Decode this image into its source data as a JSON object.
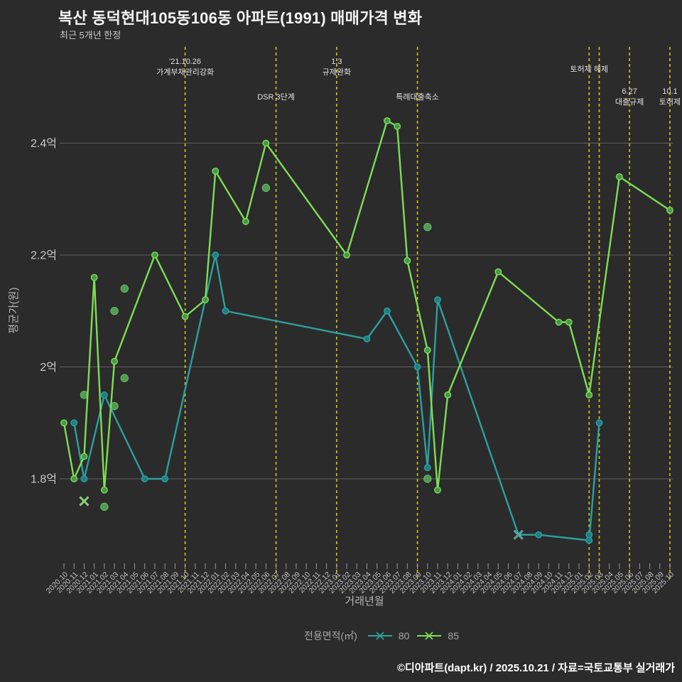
{
  "page": {
    "title": "복산 동덕현대105동106동 아파트(1991) 매매가격 변화",
    "subtitle": "최근 5개년 한정"
  },
  "legend": {
    "label": "전용면적(㎡)",
    "items": [
      {
        "name": "80",
        "color": "#2d9f9f"
      },
      {
        "name": "85",
        "color": "#7edd55"
      }
    ]
  },
  "footer": {
    "credit": "©디아파트(dapt.kr) / 2025.10.21 / 자료=국토교통부 실거래가"
  },
  "chart_data": {
    "type": "line",
    "title": "복산 동덕현대105동106동 아파트(1991) 매매가격 변화",
    "xlabel": "거래년월",
    "ylabel": "평균가(원)",
    "value_unit": "억",
    "ylim": [
      1.62,
      2.55
    ],
    "grid": true,
    "x_categories": [
      "2020.10",
      "2020.11",
      "2020.12",
      "2021.01",
      "2021.02",
      "2021.03",
      "2021.04",
      "2021.05",
      "2021.06",
      "2021.07",
      "2021.08",
      "2021.09",
      "2021.10",
      "2021.11",
      "2021.12",
      "2022.01",
      "2022.02",
      "2022.03",
      "2022.04",
      "2022.05",
      "2022.06",
      "2022.07",
      "2022.08",
      "2022.09",
      "2022.10",
      "2022.11",
      "2022.12",
      "2023.01",
      "2023.02",
      "2023.03",
      "2023.04",
      "2023.05",
      "2023.06",
      "2023.07",
      "2023.08",
      "2023.09",
      "2023.10",
      "2023.11",
      "2023.12",
      "2024.01",
      "2024.02",
      "2024.03",
      "2024.04",
      "2024.05",
      "2024.06",
      "2024.07",
      "2024.08",
      "2024.09",
      "2024.10",
      "2024.11",
      "2024.12",
      "2025.01",
      "2025.02",
      "2025.03",
      "2025.04",
      "2025.05",
      "2025.06",
      "2025.07",
      "2025.08",
      "2025.09",
      "2025.10"
    ],
    "y_ticks": [
      {
        "value": 1.8,
        "label": "1.8억"
      },
      {
        "value": 2.0,
        "label": "2억"
      },
      {
        "value": 2.2,
        "label": "2.2억"
      },
      {
        "value": 2.4,
        "label": "2.4억"
      }
    ],
    "series": [
      {
        "name": "80",
        "color": "#2d9f9f",
        "marker_fill": "#1d7f86",
        "points": [
          [
            1,
            1.9
          ],
          [
            2,
            1.8
          ],
          [
            4,
            1.95
          ],
          [
            8,
            1.8
          ],
          [
            10,
            1.8
          ],
          [
            14,
            2.12
          ],
          [
            15,
            2.2
          ],
          [
            16,
            2.1
          ],
          [
            30,
            2.05
          ],
          [
            32,
            2.1
          ],
          [
            35,
            2.0
          ],
          [
            36,
            1.82
          ],
          [
            37,
            2.12
          ],
          [
            45,
            1.7
          ],
          [
            47,
            1.7
          ],
          [
            52,
            1.69
          ],
          [
            53,
            1.9
          ]
        ],
        "x_marker_points": [
          [
            45,
            1.7
          ]
        ],
        "extra_dots": [
          [
            52,
            1.7
          ]
        ]
      },
      {
        "name": "85",
        "color": "#7edd55",
        "marker_fill": "#47984a",
        "points": [
          [
            0,
            1.9
          ],
          [
            1,
            1.8
          ],
          [
            2,
            1.84
          ],
          [
            3,
            2.16
          ],
          [
            4,
            1.78
          ],
          [
            5,
            2.01
          ],
          [
            9,
            2.2
          ],
          [
            12,
            2.09
          ],
          [
            14,
            2.12
          ],
          [
            15,
            2.35
          ],
          [
            18,
            2.26
          ],
          [
            20,
            2.4
          ],
          [
            28,
            2.2
          ],
          [
            32,
            2.44
          ],
          [
            33,
            2.43
          ],
          [
            34,
            2.19
          ],
          [
            36,
            2.03
          ],
          [
            37,
            1.78
          ],
          [
            38,
            1.95
          ],
          [
            43,
            2.17
          ],
          [
            49,
            2.08
          ],
          [
            50,
            2.08
          ],
          [
            52,
            1.95
          ],
          [
            55,
            2.34
          ],
          [
            60,
            2.28
          ]
        ],
        "x_marker_points": [
          [
            2,
            1.76
          ]
        ],
        "extra_dots": []
      }
    ],
    "scatter": {
      "name": "individual-deal-dots",
      "color": "#52a058",
      "points": [
        [
          2,
          1.95
        ],
        [
          4,
          1.75
        ],
        [
          5,
          2.1
        ],
        [
          5,
          1.93
        ],
        [
          6,
          2.14
        ],
        [
          6,
          1.98
        ],
        [
          20,
          2.32
        ],
        [
          36,
          2.25
        ],
        [
          36,
          1.8
        ]
      ]
    },
    "events": [
      {
        "month_index": 12,
        "lines": [
          "'21.10.26",
          "가계부채관리강화"
        ],
        "row": "top"
      },
      {
        "month_index": 21,
        "lines": [
          "DSR 3단계"
        ],
        "row": "mid"
      },
      {
        "month_index": 27,
        "lines": [
          "1.3",
          "규제완화"
        ],
        "row": "top"
      },
      {
        "month_index": 35,
        "lines": [
          "특례대출축소"
        ],
        "row": "mid"
      },
      {
        "month_index": 52,
        "lines": [
          "토허제 해제"
        ],
        "row": "single"
      },
      {
        "month_index": 53,
        "lines": [],
        "row": "none"
      },
      {
        "month_index": 56,
        "lines": [
          "6.27",
          "대출규제"
        ],
        "row": "low"
      },
      {
        "month_index": 60,
        "lines": [
          "10.1",
          "토허제"
        ],
        "row": "low"
      }
    ],
    "event_line_color": "#cbca25",
    "legend_position": "bottom"
  }
}
